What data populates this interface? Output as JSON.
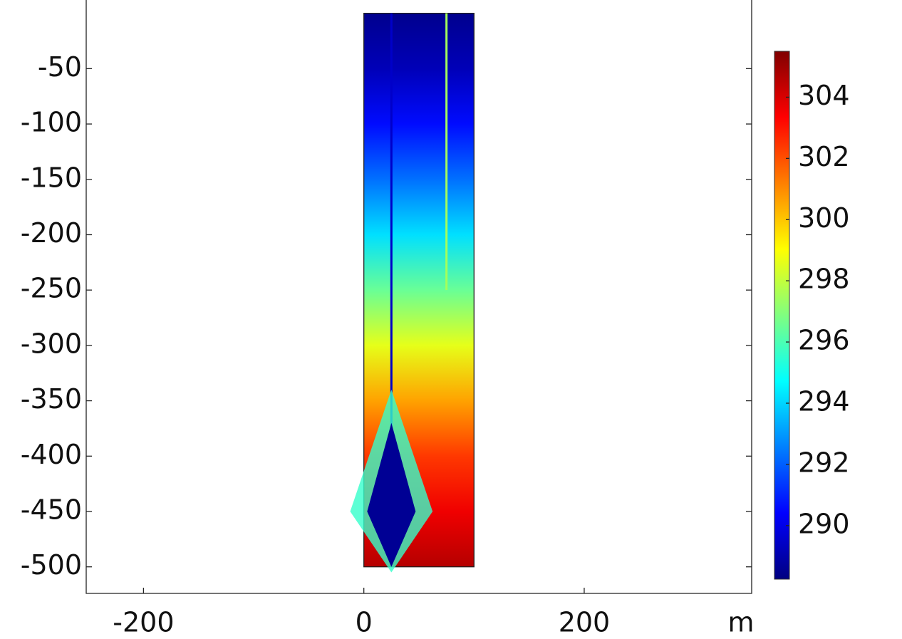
{
  "chart_data": {
    "type": "surface",
    "x_label": "m",
    "xlim": [
      -252,
      352
    ],
    "ylim": [
      -524,
      12
    ],
    "xticks": [
      -200,
      0,
      200
    ],
    "yticks": [
      -50,
      -100,
      -150,
      -200,
      -250,
      -300,
      -350,
      -400,
      -450,
      -500
    ],
    "domain": {
      "x": [
        0,
        100
      ],
      "y": [
        -500,
        0
      ]
    },
    "profile": {
      "depth": [
        0,
        -50,
        -100,
        -150,
        -200,
        -250,
        -300,
        -350,
        -400,
        -450,
        -500
      ],
      "values": [
        288.5,
        289.2,
        290.6,
        292.3,
        294.2,
        296.5,
        298.6,
        300.6,
        302.4,
        303.6,
        304.6
      ]
    },
    "streaks": [
      {
        "x": 25,
        "y_top": 0,
        "y_bottom": -390,
        "value": 289.5
      },
      {
        "x": 75,
        "y_top": 0,
        "y_bottom": -250,
        "value": 297.5
      }
    ],
    "plume": {
      "x": 25,
      "y": -450,
      "half_width": 22,
      "half_height": 50,
      "value": 288.6
    },
    "colorbar": {
      "clim": [
        288.25,
        305.5
      ],
      "ticks": [
        290,
        292,
        294,
        296,
        298,
        300,
        302,
        304
      ]
    }
  }
}
